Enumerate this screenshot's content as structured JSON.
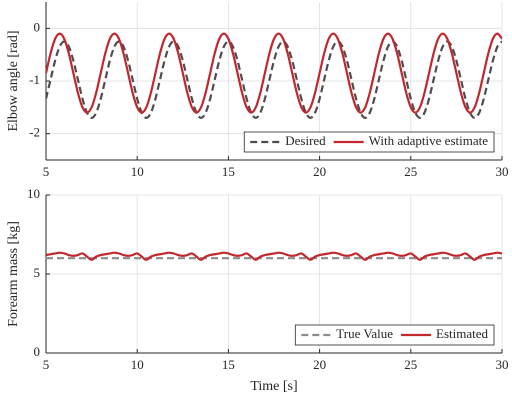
{
  "chart_data": [
    {
      "type": "line",
      "ylabel": "Elbow angle [rad]",
      "grid": true,
      "legend": "lower right",
      "xlim": [
        5,
        30
      ],
      "ylim": [
        -2.5,
        0.5
      ],
      "xticks": [
        5,
        10,
        15,
        20,
        25,
        30
      ],
      "yticks": [
        -2,
        -1,
        0
      ],
      "x": [
        5,
        5.25,
        5.5,
        5.75,
        6,
        6.25,
        6.5,
        6.75,
        7,
        7.25,
        7.5,
        7.75,
        8,
        8.25,
        8.5,
        8.75,
        9,
        9.25,
        9.5,
        9.75,
        10,
        10.25,
        10.5,
        10.75,
        11,
        11.25,
        11.5,
        11.75,
        12,
        12.25,
        12.5,
        12.75,
        13,
        13.25,
        13.5,
        13.75,
        14,
        14.25,
        14.5,
        14.75,
        15,
        15.25,
        15.5,
        15.75,
        16,
        16.25,
        16.5,
        16.75,
        17,
        17.25,
        17.5,
        17.75,
        18,
        18.25,
        18.5,
        18.75,
        19,
        19.25,
        19.5,
        19.75,
        20,
        20.25,
        20.5,
        20.75,
        21,
        21.25,
        21.5,
        21.75,
        22,
        22.25,
        22.5,
        22.75,
        23,
        23.25,
        23.5,
        23.75,
        24,
        24.25,
        24.5,
        24.75,
        25,
        25.25,
        25.5,
        25.75,
        26,
        26.25,
        26.5,
        26.75,
        27,
        27.25,
        27.5,
        27.75,
        28,
        28.25,
        28.5,
        28.75,
        29,
        29.25,
        29.5,
        29.75,
        30
      ],
      "series": [
        {
          "name": "Desired",
          "color": "#4d4d4d",
          "dashed": true,
          "values": [
            -1.338,
            -0.975,
            -0.613,
            -0.347,
            -0.25,
            -0.347,
            -0.613,
            -0.975,
            -1.338,
            -1.603,
            -1.7,
            -1.603,
            -1.338,
            -0.975,
            -0.613,
            -0.347,
            -0.25,
            -0.347,
            -0.613,
            -0.975,
            -1.338,
            -1.603,
            -1.7,
            -1.603,
            -1.338,
            -0.975,
            -0.613,
            -0.347,
            -0.25,
            -0.347,
            -0.613,
            -0.975,
            -1.338,
            -1.603,
            -1.7,
            -1.603,
            -1.338,
            -0.975,
            -0.613,
            -0.347,
            -0.25,
            -0.347,
            -0.613,
            -0.975,
            -1.338,
            -1.603,
            -1.7,
            -1.603,
            -1.338,
            -0.975,
            -0.613,
            -0.347,
            -0.25,
            -0.347,
            -0.613,
            -0.975,
            -1.338,
            -1.603,
            -1.7,
            -1.603,
            -1.338,
            -0.975,
            -0.613,
            -0.347,
            -0.25,
            -0.347,
            -0.613,
            -0.975,
            -1.338,
            -1.603,
            -1.7,
            -1.603,
            -1.338,
            -0.975,
            -0.613,
            -0.347,
            -0.25,
            -0.347,
            -0.613,
            -0.975,
            -1.338,
            -1.603,
            -1.7,
            -1.603,
            -1.338,
            -0.975,
            -0.613,
            -0.347,
            -0.25,
            -0.347,
            -0.613,
            -0.975,
            -1.338,
            -1.603,
            -1.7,
            -1.603,
            -1.338,
            -0.975,
            -0.613,
            -0.347,
            -0.25
          ]
        },
        {
          "name": "With adaptive estimate",
          "color": "#c1272d",
          "dashed": false,
          "values": [
            -0.85,
            -0.475,
            -0.2,
            -0.1,
            -0.2,
            -0.475,
            -0.85,
            -1.225,
            -1.5,
            -1.6,
            -1.5,
            -1.225,
            -0.85,
            -0.475,
            -0.2,
            -0.1,
            -0.2,
            -0.475,
            -0.85,
            -1.225,
            -1.5,
            -1.6,
            -1.5,
            -1.225,
            -0.85,
            -0.475,
            -0.2,
            -0.1,
            -0.2,
            -0.475,
            -0.85,
            -1.225,
            -1.5,
            -1.6,
            -1.5,
            -1.225,
            -0.85,
            -0.475,
            -0.2,
            -0.1,
            -0.2,
            -0.475,
            -0.85,
            -1.225,
            -1.5,
            -1.6,
            -1.5,
            -1.225,
            -0.85,
            -0.475,
            -0.2,
            -0.1,
            -0.2,
            -0.475,
            -0.85,
            -1.225,
            -1.5,
            -1.6,
            -1.5,
            -1.225,
            -0.85,
            -0.475,
            -0.2,
            -0.1,
            -0.2,
            -0.475,
            -0.85,
            -1.225,
            -1.5,
            -1.6,
            -1.5,
            -1.225,
            -0.85,
            -0.475,
            -0.2,
            -0.1,
            -0.2,
            -0.475,
            -0.85,
            -1.225,
            -1.5,
            -1.6,
            -1.5,
            -1.225,
            -0.85,
            -0.475,
            -0.2,
            -0.1,
            -0.2,
            -0.475,
            -0.85,
            -1.225,
            -1.5,
            -1.6,
            -1.5,
            -1.225,
            -0.85,
            -0.475,
            -0.2,
            -0.1,
            -0.2
          ]
        }
      ]
    },
    {
      "type": "line",
      "ylabel": "Forearm mass [kg]",
      "xlabel": "Time [s]",
      "grid": true,
      "legend": "lower right",
      "xlim": [
        5,
        30
      ],
      "ylim": [
        0,
        10
      ],
      "xticks": [
        5,
        10,
        15,
        20,
        25,
        30
      ],
      "yticks": [
        0,
        5,
        10
      ],
      "x": [
        5,
        5.25,
        5.5,
        5.75,
        6,
        6.25,
        6.5,
        6.75,
        7,
        7.25,
        7.5,
        7.75,
        8,
        8.25,
        8.5,
        8.75,
        9,
        9.25,
        9.5,
        9.75,
        10,
        10.25,
        10.5,
        10.75,
        11,
        11.25,
        11.5,
        11.75,
        12,
        12.25,
        12.5,
        12.75,
        13,
        13.25,
        13.5,
        13.75,
        14,
        14.25,
        14.5,
        14.75,
        15,
        15.25,
        15.5,
        15.75,
        16,
        16.25,
        16.5,
        16.75,
        17,
        17.25,
        17.5,
        17.75,
        18,
        18.25,
        18.5,
        18.75,
        19,
        19.25,
        19.5,
        19.75,
        20,
        20.25,
        20.5,
        20.75,
        21,
        21.25,
        21.5,
        21.75,
        22,
        22.25,
        22.5,
        22.75,
        23,
        23.25,
        23.5,
        23.75,
        24,
        24.25,
        24.5,
        24.75,
        25,
        25.25,
        25.5,
        25.75,
        26,
        26.25,
        26.5,
        26.75,
        27,
        27.25,
        27.5,
        27.75,
        28,
        28.25,
        28.5,
        28.75,
        29,
        29.25,
        29.5,
        29.75,
        30
      ],
      "series": [
        {
          "name": "True Value",
          "color": "#8c8c8c",
          "dashed": true,
          "values": [
            6,
            6,
            6,
            6,
            6,
            6,
            6,
            6,
            6,
            6,
            6,
            6,
            6,
            6,
            6,
            6,
            6,
            6,
            6,
            6,
            6,
            6,
            6,
            6,
            6,
            6,
            6,
            6,
            6,
            6,
            6,
            6,
            6,
            6,
            6,
            6,
            6,
            6,
            6,
            6,
            6,
            6,
            6,
            6,
            6,
            6,
            6,
            6,
            6,
            6,
            6,
            6,
            6,
            6,
            6,
            6,
            6,
            6,
            6,
            6,
            6,
            6,
            6,
            6,
            6,
            6,
            6,
            6,
            6,
            6,
            6,
            6,
            6,
            6,
            6,
            6,
            6,
            6,
            6,
            6,
            6,
            6,
            6,
            6,
            6,
            6,
            6,
            6,
            6,
            6,
            6,
            6,
            6,
            6,
            6,
            6,
            6,
            6,
            6,
            6,
            6
          ]
        },
        {
          "name": "Estimated",
          "color": "#c1272d",
          "dashed": false,
          "values": [
            6.2,
            6.25,
            6.3,
            6.35,
            6.3,
            6.2,
            6.15,
            6.2,
            6.3,
            6.1,
            5.9,
            6.1,
            6.2,
            6.25,
            6.3,
            6.35,
            6.3,
            6.2,
            6.15,
            6.2,
            6.3,
            6.1,
            5.9,
            6.1,
            6.2,
            6.25,
            6.3,
            6.35,
            6.3,
            6.2,
            6.15,
            6.2,
            6.3,
            6.1,
            5.9,
            6.1,
            6.2,
            6.25,
            6.3,
            6.35,
            6.3,
            6.2,
            6.15,
            6.2,
            6.3,
            6.1,
            5.9,
            6.1,
            6.2,
            6.25,
            6.3,
            6.35,
            6.3,
            6.2,
            6.15,
            6.2,
            6.3,
            6.1,
            5.9,
            6.1,
            6.2,
            6.25,
            6.3,
            6.35,
            6.3,
            6.2,
            6.15,
            6.2,
            6.3,
            6.1,
            5.9,
            6.1,
            6.2,
            6.25,
            6.3,
            6.35,
            6.3,
            6.2,
            6.15,
            6.2,
            6.3,
            6.1,
            5.9,
            6.1,
            6.2,
            6.25,
            6.3,
            6.35,
            6.3,
            6.2,
            6.15,
            6.2,
            6.3,
            6.1,
            5.9,
            6.1,
            6.2,
            6.25,
            6.3,
            6.35,
            6.3
          ]
        }
      ]
    }
  ]
}
